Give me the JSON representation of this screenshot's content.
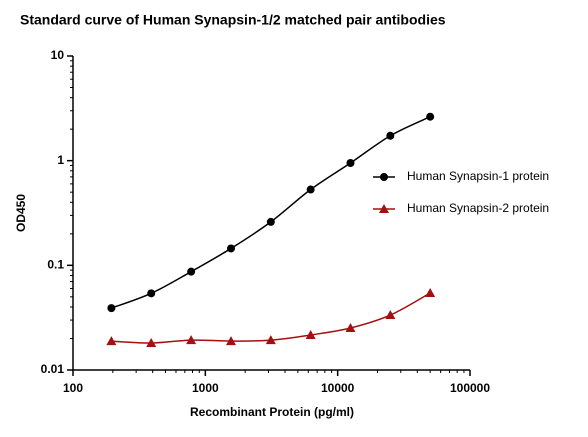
{
  "chart_data": {
    "type": "line",
    "title": "Standard curve of Human Synapsin-1/2 matched pair antibodies",
    "x_label": "Recombinant Protein (pg/ml)",
    "y_label": "OD450",
    "x": [
      195,
      390,
      781,
      1563,
      3125,
      6250,
      12500,
      25000,
      50000
    ],
    "series": [
      {
        "name": "Human Synapsin-1 protein",
        "color": "#000000",
        "marker": "circle",
        "values": [
          0.039,
          0.054,
          0.087,
          0.145,
          0.26,
          0.53,
          0.95,
          1.73,
          2.63
        ]
      },
      {
        "name": "Human Synapsin-2 protein",
        "color": "#a50f0f",
        "marker": "triangle",
        "values": [
          0.0189,
          0.0181,
          0.0193,
          0.0189,
          0.0193,
          0.0216,
          0.0252,
          0.0335,
          0.0544
        ]
      }
    ],
    "xlim": [
      100,
      100000
    ],
    "xticks": [
      100,
      1000,
      10000,
      100000
    ],
    "xscale": "log",
    "ylim": [
      0.01,
      10
    ],
    "yticks": [
      0.01,
      0.1,
      1,
      10
    ],
    "yscale": "log",
    "grid": false,
    "legend": "right"
  }
}
